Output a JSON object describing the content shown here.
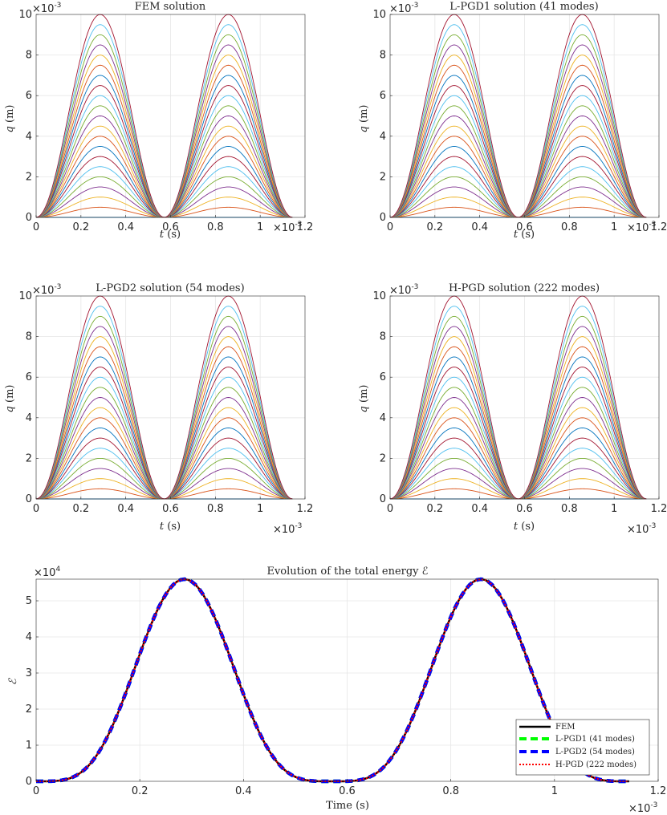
{
  "chart_data": [
    {
      "type": "line",
      "title": "FEM solution",
      "xlabel_var": "t",
      "xlabel_unit": "(s)",
      "ylabel_var": "q",
      "ylabel_unit": "(m)",
      "xlim": [
        0,
        0.0012
      ],
      "ylim": [
        0,
        0.01
      ],
      "xticks": [
        "0",
        "0.2",
        "0.4",
        "0.6",
        "0.8",
        "1",
        "1.2"
      ],
      "yticks": [
        "0",
        "2",
        "4",
        "6",
        "8",
        "10"
      ],
      "x_multiplier": "×10",
      "x_exponent": "-3",
      "y_multiplier": "×10",
      "y_exponent": "-3",
      "curve_description": "21 curves, amplitudes 0 to 0.01 m in equal steps, each q = A·sin²(π t / 0.000572) for t in [0, 0.001144] s",
      "series_count": 21,
      "amplitude_max": 0.01,
      "half_period": 0.000572,
      "t_end": 0.001144
    },
    {
      "type": "line",
      "title": "L-PGD1 solution (41 modes)",
      "xlabel_var": "t",
      "xlabel_unit": "(s)",
      "ylabel_var": "q",
      "ylabel_unit": "(m)",
      "xlim": [
        0,
        0.0012
      ],
      "ylim": [
        0,
        0.01
      ],
      "xticks": [
        "0",
        "0.2",
        "0.4",
        "0.6",
        "0.8",
        "1",
        "1.2"
      ],
      "yticks": [
        "0",
        "2",
        "4",
        "6",
        "8",
        "10"
      ],
      "x_multiplier": "×10",
      "x_exponent": "-3",
      "y_multiplier": "×10",
      "y_exponent": "-3",
      "series_count": 21,
      "amplitude_max": 0.01,
      "half_period": 0.000572,
      "t_end": 0.001144
    },
    {
      "type": "line",
      "title": "L-PGD2 solution (54 modes)",
      "xlabel_var": "t",
      "xlabel_unit": "(s)",
      "ylabel_var": "q",
      "ylabel_unit": "(m)",
      "xlim": [
        0,
        0.0012
      ],
      "ylim": [
        0,
        0.01
      ],
      "xticks": [
        "0",
        "0.2",
        "0.4",
        "0.6",
        "0.8",
        "1",
        "1.2"
      ],
      "yticks": [
        "0",
        "2",
        "4",
        "6",
        "8",
        "10"
      ],
      "x_multiplier": "×10",
      "x_exponent": "-3",
      "y_multiplier": "×10",
      "y_exponent": "-3",
      "series_count": 21,
      "amplitude_max": 0.01,
      "half_period": 0.000572,
      "t_end": 0.001144
    },
    {
      "type": "line",
      "title": "H-PGD solution (222 modes)",
      "xlabel_var": "t",
      "xlabel_unit": "(s)",
      "ylabel_var": "q",
      "ylabel_unit": "(m)",
      "xlim": [
        0,
        0.0012
      ],
      "ylim": [
        0,
        0.01
      ],
      "xticks": [
        "0",
        "0.2",
        "0.4",
        "0.6",
        "0.8",
        "1",
        "1.2"
      ],
      "yticks": [
        "0",
        "2",
        "4",
        "6",
        "8",
        "10"
      ],
      "x_multiplier": "×10",
      "x_exponent": "-3",
      "y_multiplier": "×10",
      "y_exponent": "-3",
      "series_count": 21,
      "amplitude_max": 0.01,
      "half_period": 0.000572,
      "t_end": 0.001144
    },
    {
      "type": "line",
      "title": "Evolution of the total energy ℰ",
      "xlabel": "Time (s)",
      "ylabel": "ℰ",
      "xlim": [
        0,
        0.0012
      ],
      "ylim": [
        0,
        56000
      ],
      "xticks": [
        "0",
        "0.2",
        "0.4",
        "0.6",
        "0.8",
        "1",
        "1.2"
      ],
      "yticks": [
        "0",
        "1",
        "2",
        "3",
        "4",
        "5"
      ],
      "x_multiplier": "×10",
      "x_exponent": "-3",
      "y_multiplier": "×10",
      "y_exponent": "4",
      "energy_peak": 56000,
      "half_period": 0.000572,
      "t_end": 0.001144,
      "legend_position": "bottom-right",
      "series": [
        {
          "name": "FEM",
          "color": "#000000",
          "style": "solid"
        },
        {
          "name": "L-PGD1 (41 modes)",
          "color": "#00ff00",
          "style": "dashed"
        },
        {
          "name": "L-PGD2 (54 modes)",
          "color": "#0000ff",
          "style": "dashed"
        },
        {
          "name": "H-PGD (222 modes)",
          "color": "#ff0000",
          "style": "dotted"
        }
      ]
    }
  ],
  "palette": [
    "#0072BD",
    "#D95319",
    "#EDB120",
    "#7E2F8E",
    "#77AC30",
    "#4DBEEE",
    "#A2142F"
  ]
}
